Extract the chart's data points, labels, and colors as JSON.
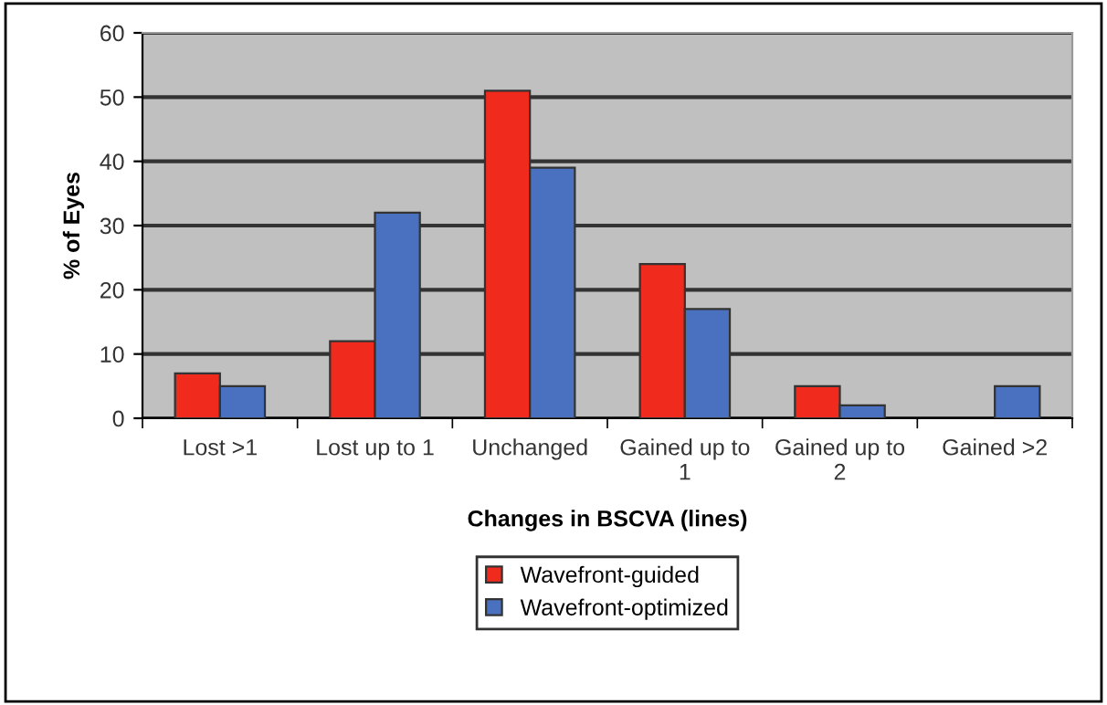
{
  "chart_data": {
    "type": "bar",
    "xlabel": "Changes in BSCVA (lines)",
    "ylabel": "% of Eyes",
    "categories": [
      "Lost >1",
      "Lost up to 1",
      "Unchanged",
      "Gained up to 1",
      "Gained up to 2",
      "Gained >2"
    ],
    "series": [
      {
        "name": "Wavefront-guided",
        "color": "#f02a1c",
        "values": [
          7,
          12,
          51,
          24,
          5,
          null
        ]
      },
      {
        "name": "Wavefront-optimized",
        "color": "#4a70c0",
        "values": [
          5,
          32,
          39,
          17,
          2,
          5
        ]
      }
    ],
    "ylim": [
      0,
      60
    ],
    "yticks": [
      0,
      10,
      20,
      30,
      40,
      50,
      60
    ],
    "grid": "y",
    "legend": "bottom"
  }
}
